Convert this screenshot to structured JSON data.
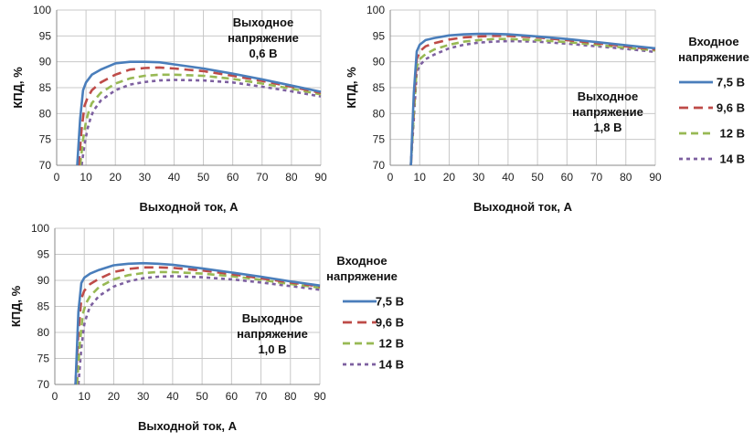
{
  "chart_data": [
    {
      "type": "line",
      "xlabel": "Выходной ток, А",
      "ylabel": "КПД, %",
      "xlim": [
        0,
        90
      ],
      "ylim": [
        70,
        100
      ],
      "xticks": [
        "0",
        "10",
        "20",
        "30",
        "40",
        "50",
        "60",
        "70",
        "80",
        "90"
      ],
      "yticks": [
        "70",
        "75",
        "80",
        "85",
        "90",
        "95",
        "100"
      ],
      "grid": true,
      "annotation": [
        "Выходное",
        "напряжение",
        "0,6 В"
      ],
      "series": [
        {
          "name": "7,5 В",
          "x": [
            7,
            8,
            9,
            10,
            12,
            15,
            20,
            25,
            30,
            35,
            40,
            50,
            60,
            70,
            80,
            90
          ],
          "y": [
            70,
            79,
            84.5,
            86,
            87.5,
            88.5,
            89.7,
            90,
            90,
            89.9,
            89.5,
            88.7,
            87.7,
            86.6,
            85.4,
            84.2
          ]
        },
        {
          "name": "9,6 В",
          "x": [
            7.5,
            8.5,
            9.5,
            10.5,
            12,
            15,
            20,
            25,
            30,
            35,
            40,
            50,
            60,
            70,
            80,
            90
          ],
          "y": [
            70,
            77,
            81.5,
            83,
            84.5,
            86,
            87.5,
            88.5,
            88.8,
            88.9,
            88.7,
            88.2,
            87.3,
            86.3,
            85.2,
            84
          ],
          "_": null
        },
        {
          "name": "12 В",
          "x": [
            8,
            9,
            10,
            11,
            12,
            15,
            20,
            25,
            30,
            35,
            40,
            50,
            60,
            70,
            80,
            90
          ],
          "y": [
            70,
            75,
            78.5,
            80.5,
            82,
            84,
            85.8,
            86.8,
            87.3,
            87.5,
            87.5,
            87.3,
            86.7,
            85.8,
            84.8,
            83.7
          ]
        },
        {
          "name": "14 В",
          "x": [
            8.5,
            9.5,
            10.5,
            11.5,
            12.5,
            15,
            20,
            25,
            30,
            35,
            40,
            50,
            60,
            70,
            80,
            90
          ],
          "y": [
            70,
            74,
            77,
            79,
            80.5,
            82.5,
            84.5,
            85.6,
            86.1,
            86.4,
            86.5,
            86.4,
            86,
            85.2,
            84.3,
            83.3
          ]
        }
      ]
    },
    {
      "type": "line",
      "xlabel": "Выходной ток, А",
      "ylabel": "КПД, %",
      "xlim": [
        0,
        90
      ],
      "ylim": [
        70,
        100
      ],
      "xticks": [
        "0",
        "10",
        "20",
        "30",
        "40",
        "50",
        "60",
        "70",
        "80",
        "90"
      ],
      "yticks": [
        "70",
        "75",
        "80",
        "85",
        "90",
        "95",
        "100"
      ],
      "grid": true,
      "annotation": [
        "Выходное",
        "напряжение",
        "1,8 В"
      ],
      "series": [
        {
          "name": "7,5 В",
          "x": [
            7,
            8,
            9,
            10,
            12,
            15,
            20,
            25,
            30,
            35,
            40,
            50,
            60,
            70,
            80,
            90
          ],
          "y": [
            70,
            84,
            92,
            93.3,
            94.2,
            94.6,
            95.1,
            95.3,
            95.4,
            95.4,
            95.3,
            94.9,
            94.4,
            93.8,
            93.2,
            92.6
          ]
        },
        {
          "name": "9,6 В",
          "x": [
            7,
            8,
            9,
            10,
            12,
            15,
            20,
            25,
            30,
            35,
            40,
            50,
            60,
            70,
            80,
            90
          ],
          "y": [
            70,
            82,
            90.5,
            92,
            93,
            93.6,
            94.3,
            94.7,
            94.9,
            95,
            95,
            94.7,
            94.2,
            93.6,
            93,
            92.4
          ]
        },
        {
          "name": "12 В",
          "x": [
            7,
            8,
            9,
            10,
            12,
            15,
            20,
            25,
            30,
            35,
            40,
            50,
            60,
            70,
            80,
            90
          ],
          "y": [
            70,
            80,
            89,
            90.5,
            91.5,
            92.4,
            93.3,
            93.9,
            94.2,
            94.4,
            94.4,
            94.2,
            93.8,
            93.3,
            92.7,
            92.2
          ]
        },
        {
          "name": "14 В",
          "x": [
            7,
            8,
            9,
            10,
            12,
            15,
            20,
            25,
            30,
            35,
            40,
            50,
            60,
            70,
            80,
            90
          ],
          "y": [
            70,
            79,
            88,
            89.3,
            90.5,
            91.4,
            92.6,
            93.3,
            93.7,
            93.9,
            94,
            93.9,
            93.5,
            93,
            92.5,
            91.9
          ]
        }
      ]
    },
    {
      "type": "line",
      "xlabel": "Выходной ток, А",
      "ylabel": "КПД, %",
      "xlim": [
        0,
        90
      ],
      "ylim": [
        70,
        100
      ],
      "xticks": [
        "0",
        "10",
        "20",
        "30",
        "40",
        "50",
        "60",
        "70",
        "80",
        "90"
      ],
      "yticks": [
        "70",
        "75",
        "80",
        "85",
        "90",
        "95",
        "100"
      ],
      "grid": true,
      "annotation": [
        "Выходное",
        "напряжение",
        "1,0 В"
      ],
      "series": [
        {
          "name": "7,5 В",
          "x": [
            7,
            8,
            9,
            10,
            12,
            15,
            20,
            25,
            30,
            35,
            40,
            50,
            60,
            70,
            80,
            90
          ],
          "y": [
            70,
            84,
            89.5,
            90.5,
            91.3,
            92,
            92.9,
            93.2,
            93.3,
            93.2,
            93,
            92.3,
            91.5,
            90.7,
            89.8,
            89
          ]
        },
        {
          "name": "9,6 В",
          "x": [
            7,
            8,
            9,
            10,
            12,
            15,
            20,
            25,
            30,
            35,
            40,
            50,
            60,
            70,
            80,
            90
          ],
          "y": [
            70,
            80,
            86.5,
            88,
            89.3,
            90.3,
            91.6,
            92.2,
            92.5,
            92.5,
            92.4,
            91.9,
            91.2,
            90.4,
            89.6,
            88.8
          ]
        },
        {
          "name": "12 В",
          "x": [
            7.5,
            8.5,
            9.5,
            10.5,
            12,
            15,
            20,
            25,
            30,
            35,
            40,
            50,
            60,
            70,
            80,
            90
          ],
          "y": [
            70,
            78,
            83.5,
            85.5,
            87,
            88.7,
            90.2,
            91,
            91.4,
            91.6,
            91.6,
            91.3,
            90.8,
            90.1,
            89.3,
            88.6
          ]
        },
        {
          "name": "14 В",
          "x": [
            8,
            9,
            10,
            11,
            12,
            15,
            20,
            25,
            30,
            35,
            40,
            50,
            60,
            70,
            80,
            90
          ],
          "y": [
            70,
            77,
            81.5,
            83.5,
            85,
            87,
            88.8,
            89.8,
            90.4,
            90.7,
            90.8,
            90.6,
            90.2,
            89.6,
            88.9,
            88.2
          ]
        }
      ]
    }
  ],
  "legends": [
    {
      "title": [
        "Входное",
        "напряжение"
      ],
      "items": [
        "7,5 В",
        "9,6 В",
        "12 В",
        "14 В"
      ]
    },
    {
      "title": [
        "Входное",
        "напряжение"
      ],
      "items": [
        "7,5 В",
        "9,6 В",
        "12 В",
        "14 В"
      ]
    }
  ],
  "colors": {
    "series": [
      "#4a7ebb",
      "#be4b48",
      "#98b954",
      "#7d60a0"
    ],
    "grid": "#c8c8c8",
    "axis": "#888888"
  }
}
